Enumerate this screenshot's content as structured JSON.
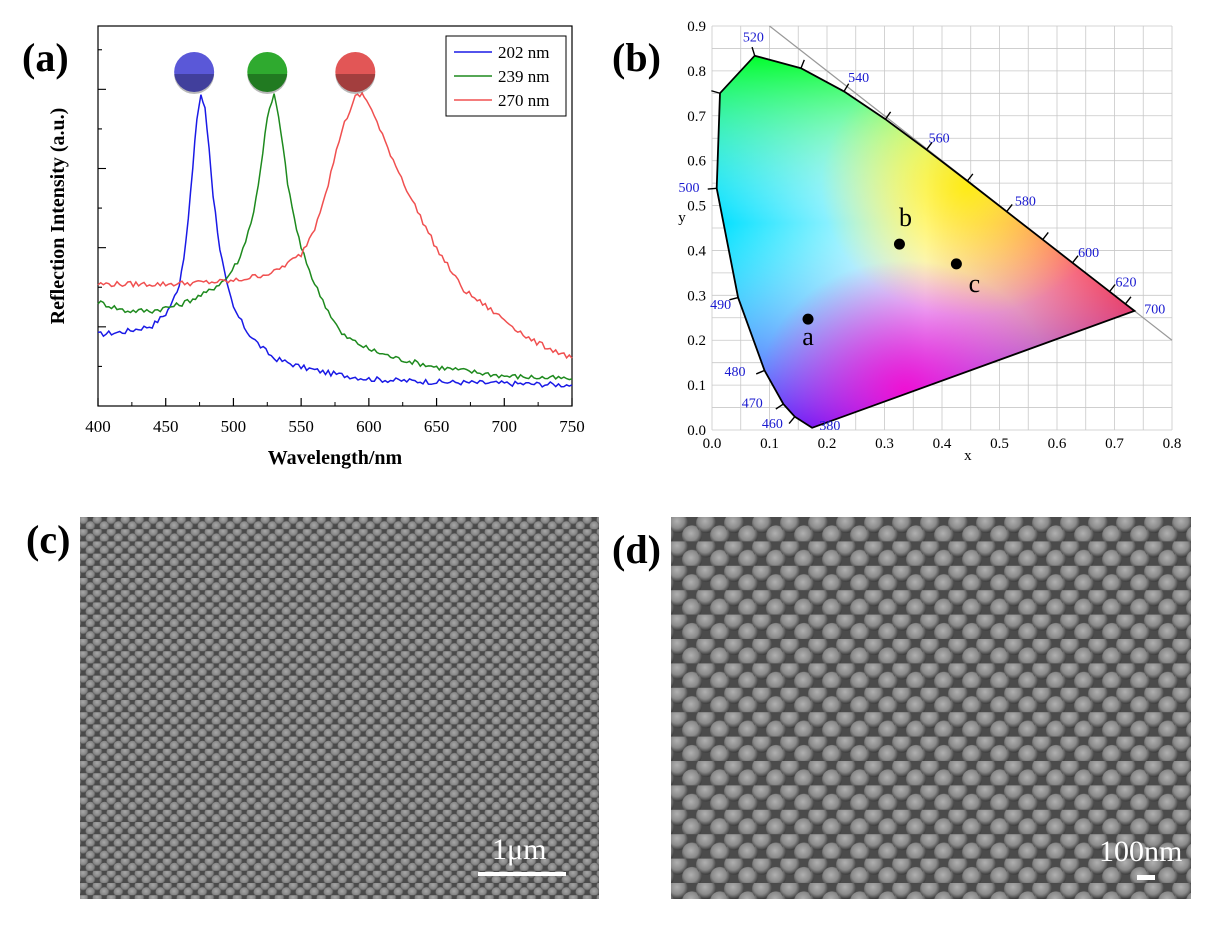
{
  "panels": {
    "a": "(a)",
    "b": "(b)",
    "c": "(c)",
    "d": "(d)"
  },
  "chart_data": [
    {
      "type": "line",
      "title": "",
      "xlabel": "Wavelength/nm",
      "ylabel": "Reflection Intensity (a.u.)",
      "xlim": [
        400,
        750
      ],
      "ylim": [
        0,
        1.0
      ],
      "x_ticks": [
        "400",
        "450",
        "500",
        "550",
        "600",
        "650",
        "700",
        "750"
      ],
      "legend_position": "top-right",
      "series": [
        {
          "name": "202 nm",
          "color": "#1a1ae6",
          "x": [
            400,
            420,
            440,
            450,
            455,
            460,
            465,
            470,
            473,
            476,
            479,
            482,
            485,
            490,
            495,
            500,
            510,
            520,
            530,
            550,
            570,
            600,
            620,
            650,
            700,
            750
          ],
          "y": [
            0.19,
            0.2,
            0.22,
            0.26,
            0.3,
            0.36,
            0.5,
            0.75,
            0.92,
            1.0,
            0.95,
            0.82,
            0.66,
            0.48,
            0.36,
            0.28,
            0.2,
            0.15,
            0.11,
            0.08,
            0.06,
            0.04,
            0.035,
            0.03,
            0.025,
            0.02
          ]
        },
        {
          "name": "239 nm",
          "color": "#1e8a1e",
          "x": [
            400,
            420,
            440,
            460,
            480,
            495,
            505,
            515,
            520,
            525,
            530,
            535,
            540,
            545,
            550,
            560,
            570,
            580,
            600,
            620,
            650,
            700,
            750
          ],
          "y": [
            0.3,
            0.27,
            0.27,
            0.29,
            0.33,
            0.38,
            0.45,
            0.6,
            0.75,
            0.92,
            1.0,
            0.88,
            0.7,
            0.58,
            0.48,
            0.36,
            0.27,
            0.19,
            0.14,
            0.11,
            0.08,
            0.05,
            0.04
          ]
        },
        {
          "name": "270 nm",
          "color": "#f05050",
          "x": [
            400,
            450,
            500,
            530,
            550,
            560,
            570,
            580,
            590,
            595,
            600,
            610,
            620,
            630,
            650,
            670,
            700,
            720,
            750
          ],
          "y": [
            0.36,
            0.36,
            0.37,
            0.4,
            0.46,
            0.55,
            0.7,
            0.88,
            0.99,
            1.0,
            0.97,
            0.86,
            0.76,
            0.66,
            0.48,
            0.34,
            0.24,
            0.17,
            0.11
          ]
        }
      ]
    },
    {
      "type": "scatter",
      "title": "",
      "xlabel": "x",
      "ylabel": "y",
      "xlim": [
        0.0,
        0.8
      ],
      "ylim": [
        0.0,
        0.9
      ],
      "x_ticks": [
        "0.0",
        "0.1",
        "0.2",
        "0.3",
        "0.4",
        "0.5",
        "0.6",
        "0.7",
        "0.8"
      ],
      "y_ticks": [
        "0.0",
        "0.1",
        "0.2",
        "0.3",
        "0.4",
        "0.5",
        "0.6",
        "0.7",
        "0.8",
        "0.9"
      ],
      "grid": true,
      "points": [
        {
          "label": "a",
          "x": 0.167,
          "y": 0.247
        },
        {
          "label": "b",
          "x": 0.326,
          "y": 0.414
        },
        {
          "label": "c",
          "x": 0.425,
          "y": 0.37
        }
      ],
      "locus": [
        {
          "nm": 380,
          "x": 0.1741,
          "y": 0.005
        },
        {
          "nm": 460,
          "x": 0.144,
          "y": 0.0297
        },
        {
          "nm": 470,
          "x": 0.1241,
          "y": 0.0578
        },
        {
          "nm": 480,
          "x": 0.0913,
          "y": 0.1327
        },
        {
          "nm": 490,
          "x": 0.0454,
          "y": 0.295
        },
        {
          "nm": 500,
          "x": 0.0082,
          "y": 0.5384
        },
        {
          "nm": 510,
          "x": 0.0139,
          "y": 0.7502
        },
        {
          "nm": 520,
          "x": 0.0743,
          "y": 0.8338
        },
        {
          "nm": 530,
          "x": 0.1547,
          "y": 0.8059
        },
        {
          "nm": 540,
          "x": 0.2296,
          "y": 0.7543
        },
        {
          "nm": 550,
          "x": 0.3016,
          "y": 0.6923
        },
        {
          "nm": 560,
          "x": 0.3731,
          "y": 0.6245
        },
        {
          "nm": 570,
          "x": 0.4441,
          "y": 0.5547
        },
        {
          "nm": 580,
          "x": 0.5125,
          "y": 0.4866
        },
        {
          "nm": 590,
          "x": 0.5752,
          "y": 0.4242
        },
        {
          "nm": 600,
          "x": 0.627,
          "y": 0.3725
        },
        {
          "nm": 620,
          "x": 0.6915,
          "y": 0.3083
        },
        {
          "nm": 640,
          "x": 0.719,
          "y": 0.2809
        },
        {
          "nm": 700,
          "x": 0.7347,
          "y": 0.2653
        }
      ],
      "wavelength_labels": [
        "520",
        "540",
        "560",
        "580",
        "600",
        "620",
        "700",
        "500",
        "490",
        "480",
        "470",
        "460",
        "380"
      ]
    }
  ],
  "sem_c": {
    "scalebar_label": "1μm"
  },
  "sem_d": {
    "scalebar_label": "100nm"
  },
  "sphere_colors": [
    "#5a58d8",
    "#2faa2f",
    "#e25656"
  ]
}
